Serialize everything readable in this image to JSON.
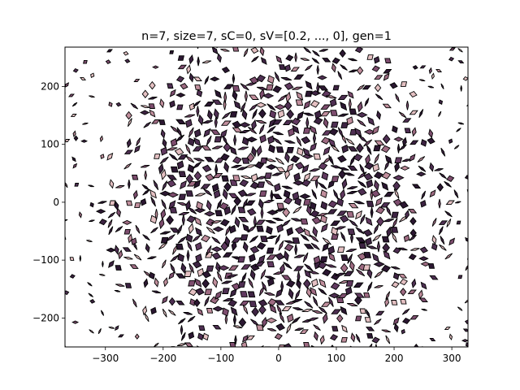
{
  "chart_data": {
    "type": "scatter",
    "title": "n=7, size=7, sC=0, sV=[0.2, ..., 0], gen=1",
    "xlabel": "",
    "ylabel": "",
    "xlim": [
      -370,
      328
    ],
    "ylim": [
      -250,
      268
    ],
    "xticks": [
      -300,
      -200,
      -100,
      0,
      100,
      200,
      300
    ],
    "yticks": [
      -200,
      -100,
      0,
      100,
      200
    ],
    "grid": false,
    "legend": "none",
    "colors": {
      "edge": "#000000",
      "fill_palette": [
        "#2b1731",
        "#3d2342",
        "#4e2f52",
        "#60395f",
        "#7d4d6e",
        "#9e6b82",
        "#c18f9d",
        "#e4c0c2"
      ]
    },
    "pattern": {
      "description_free": true,
      "core_radius": 220,
      "outer_radius": 310,
      "tile_spacing": 15.5,
      "rhombus_angles_deg": [
        25.7,
        51.4,
        77.1
      ]
    }
  }
}
